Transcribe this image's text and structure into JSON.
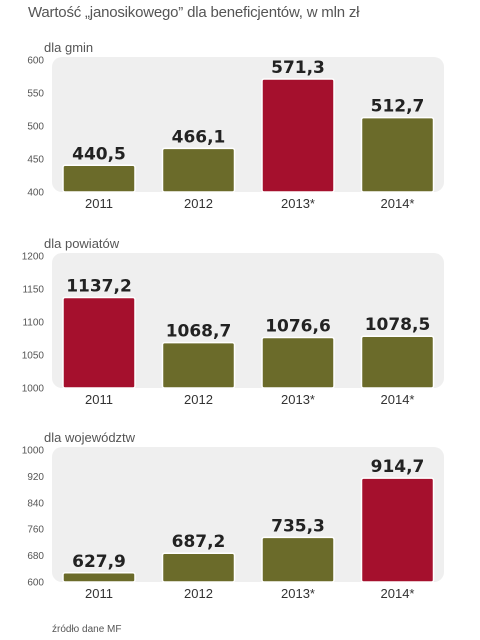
{
  "title": "Wartość „janosikowego” dla beneficjentów, w mln zł",
  "source": "źródło dane MF",
  "colors": {
    "normal": "#6b6b2a",
    "highlight": "#a5102d",
    "panel": "#efefef",
    "bar_stroke": "#ffffff"
  },
  "chart_data": [
    {
      "type": "bar",
      "title": "dla gmin",
      "categories": [
        "2011",
        "2012",
        "2013*",
        "2014*"
      ],
      "values": [
        440.5,
        466.1,
        571.3,
        512.7
      ],
      "value_labels": [
        "440,5",
        "466,1",
        "571,3",
        "512,7"
      ],
      "highlight_index": 2,
      "ylim": [
        400,
        600
      ],
      "yticks": [
        400,
        450,
        500,
        550,
        600
      ],
      "ytick_labels": [
        "400",
        "450",
        "500",
        "550",
        "600"
      ],
      "grid": false
    },
    {
      "type": "bar",
      "title": "dla powiatów",
      "categories": [
        "2011",
        "2012",
        "2013*",
        "2014*"
      ],
      "values": [
        1137.2,
        1068.7,
        1076.6,
        1078.5
      ],
      "value_labels": [
        "1137,2",
        "1068,7",
        "1076,6",
        "1078,5"
      ],
      "highlight_index": 0,
      "ylim": [
        1000,
        1200
      ],
      "yticks": [
        1000,
        1050,
        1100,
        1150,
        1200
      ],
      "ytick_labels": [
        "1000",
        "1050",
        "1100",
        "1150",
        "1200"
      ],
      "grid": false
    },
    {
      "type": "bar",
      "title": "dla województw",
      "categories": [
        "2011",
        "2012",
        "2013*",
        "2014*"
      ],
      "values": [
        627.9,
        687.2,
        735.3,
        914.7
      ],
      "value_labels": [
        "627,9",
        "687,2",
        "735,3",
        "914,7"
      ],
      "highlight_index": 3,
      "ylim": [
        600,
        1000
      ],
      "yticks": [
        600,
        680,
        760,
        840,
        920,
        1000
      ],
      "ytick_labels": [
        "600",
        "680",
        "760",
        "840",
        "920",
        "1000"
      ],
      "grid": false
    }
  ]
}
